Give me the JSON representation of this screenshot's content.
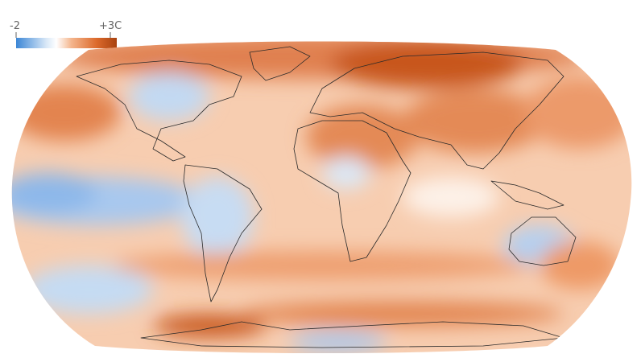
{
  "legend": {
    "min_label": "-2",
    "max_label": "+3C"
  }
}
